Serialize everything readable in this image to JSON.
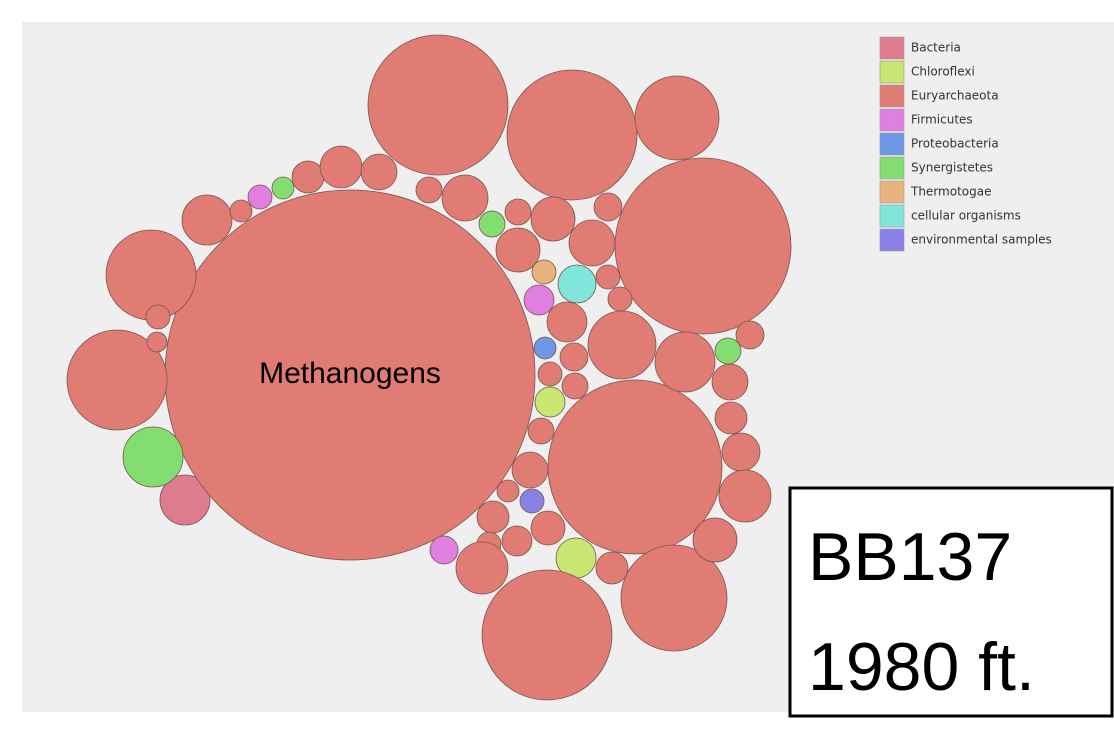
{
  "chart_data": {
    "type": "bubble",
    "annotation": "Methanogens",
    "text_box": [
      "BB137",
      "1980 ft."
    ],
    "series": [
      {
        "name": "Bacteria",
        "color": "#df7b8f",
        "values": [
          25
        ]
      },
      {
        "name": "Chloroflexi",
        "color": "#c9e670",
        "values": [
          15,
          20
        ]
      },
      {
        "name": "Euryarchaeota",
        "color": "#e07c73",
        "values": [
          185,
          70,
          65,
          42,
          88,
          87,
          65,
          53,
          45,
          50,
          25,
          11,
          16,
          21,
          18,
          13,
          23,
          13,
          22,
          22,
          14,
          23,
          12,
          12,
          20,
          34,
          30,
          14,
          14,
          12,
          13,
          18,
          16,
          13,
          19,
          18,
          26,
          11,
          16,
          17,
          15,
          12,
          16,
          22,
          26,
          12,
          10
        ]
      },
      {
        "name": "Firmicutes",
        "color": "#e07fe0",
        "values": [
          12,
          15,
          14
        ]
      },
      {
        "name": "Proteobacteria",
        "color": "#7096e6",
        "values": [
          11
        ]
      },
      {
        "name": "Synergistetes",
        "color": "#84dd70",
        "values": [
          30,
          11,
          13,
          13
        ]
      },
      {
        "name": "Thermotogae",
        "color": "#e9b37d",
        "values": [
          12
        ]
      },
      {
        "name": "cellular organisms",
        "color": "#80e6dc",
        "values": [
          19
        ]
      },
      {
        "name": "environmental samples",
        "color": "#8b80e8",
        "values": [
          12
        ]
      }
    ]
  }
}
